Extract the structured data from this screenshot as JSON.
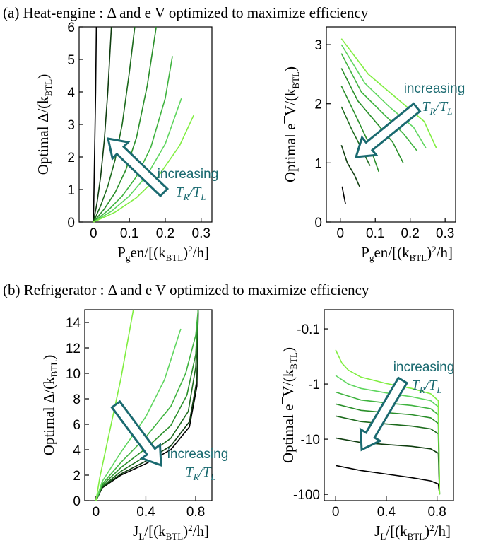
{
  "titles": {
    "a": "(a) Heat-engine : Δ and e V optimized to maximize efficiency",
    "b": "(b) Refrigerator : Δ and e V optimized to maximize efficiency"
  },
  "series_colors": [
    "#000000",
    "#0f3d0f",
    "#1c6a1c",
    "#2a8f2a",
    "#3fb33f",
    "#5fd65f",
    "#80ee40"
  ],
  "annotation_color": "#1a6a70",
  "chart_data": [
    {
      "id": "a-left",
      "type": "line",
      "xlabel": "P_gen/[(k_BT_L)^2/h]",
      "ylabel": "Optimal Δ/(k_BT_L)",
      "xlim": [
        -0.04,
        0.33
      ],
      "ylim": [
        0,
        6
      ],
      "xticks": [
        "0",
        "0.1",
        "0.2",
        "0.3"
      ],
      "xtick_values": [
        0,
        0.1,
        0.2,
        0.3
      ],
      "yticks": [
        "0",
        "1",
        "2",
        "3",
        "4",
        "5",
        "6"
      ],
      "ytick_values": [
        0,
        1,
        2,
        3,
        4,
        5,
        6
      ],
      "annotation": {
        "word": "increasing",
        "ratio": "T_R/T_L"
      },
      "series": [
        {
          "x": [
            0,
            0.003,
            0.006,
            0.008
          ],
          "y": [
            0,
            2,
            4,
            6
          ]
        },
        {
          "x": [
            0,
            0.01,
            0.02,
            0.03,
            0.04,
            0.05
          ],
          "y": [
            0,
            0.6,
            1.4,
            2.5,
            4.0,
            6.0
          ]
        },
        {
          "x": [
            0,
            0.02,
            0.04,
            0.06,
            0.08,
            0.1,
            0.115
          ],
          "y": [
            0,
            0.5,
            1.1,
            1.9,
            3.0,
            4.6,
            6.0
          ]
        },
        {
          "x": [
            0,
            0.03,
            0.06,
            0.09,
            0.12,
            0.15,
            0.175
          ],
          "y": [
            0,
            0.4,
            0.9,
            1.6,
            2.6,
            4.2,
            6.0
          ]
        },
        {
          "x": [
            0,
            0.04,
            0.08,
            0.12,
            0.16,
            0.2,
            0.22
          ],
          "y": [
            0,
            0.35,
            0.8,
            1.4,
            2.3,
            3.8,
            5.1
          ]
        },
        {
          "x": [
            0,
            0.05,
            0.1,
            0.15,
            0.2,
            0.245
          ],
          "y": [
            0,
            0.33,
            0.8,
            1.45,
            2.4,
            3.8
          ]
        },
        {
          "x": [
            0,
            0.06,
            0.12,
            0.18,
            0.24,
            0.28
          ],
          "y": [
            0,
            0.3,
            0.75,
            1.4,
            2.35,
            3.3
          ]
        }
      ]
    },
    {
      "id": "a-right",
      "type": "line",
      "xlabel": "P_gen/[(k_BT_L)^2/h]",
      "ylabel": "Optimal e¯V/(k_BT_L)",
      "xlim": [
        -0.04,
        0.33
      ],
      "ylim": [
        0,
        3.3
      ],
      "xticks": [
        "0",
        "0.1",
        "0.2",
        "0.3"
      ],
      "xtick_values": [
        0,
        0.1,
        0.2,
        0.3
      ],
      "yticks": [
        "0",
        "1",
        "2",
        "3"
      ],
      "ytick_values": [
        0,
        1,
        2,
        3
      ],
      "annotation": {
        "word": "increasing",
        "ratio": "T_R/T_L"
      },
      "series": [
        {
          "x": [
            0.005,
            0.01,
            0.015
          ],
          "y": [
            0.6,
            0.45,
            0.3
          ]
        },
        {
          "x": [
            0.003,
            0.02,
            0.04,
            0.055
          ],
          "y": [
            1.3,
            1.0,
            0.8,
            0.6
          ]
        },
        {
          "x": [
            0.003,
            0.03,
            0.06,
            0.085
          ],
          "y": [
            1.95,
            1.6,
            1.25,
            0.95
          ]
        },
        {
          "x": [
            0.003,
            0.04,
            0.08,
            0.11
          ],
          "y": [
            2.3,
            1.85,
            1.35,
            0.85
          ]
        },
        {
          "x": [
            0.003,
            0.05,
            0.1,
            0.15,
            0.18
          ],
          "y": [
            2.6,
            2.05,
            1.7,
            1.35,
            1.0
          ]
        },
        {
          "x": [
            0.003,
            0.06,
            0.12,
            0.18,
            0.22
          ],
          "y": [
            2.85,
            2.2,
            1.85,
            1.5,
            1.2
          ]
        },
        {
          "x": [
            0.003,
            0.07,
            0.14,
            0.21,
            0.245
          ],
          "y": [
            3.0,
            2.35,
            1.95,
            1.6,
            1.25
          ]
        },
        {
          "x": [
            0.003,
            0.08,
            0.16,
            0.24,
            0.275
          ],
          "y": [
            3.1,
            2.5,
            2.1,
            1.7,
            1.25
          ]
        }
      ]
    },
    {
      "id": "b-left",
      "type": "line",
      "xlabel": "J_L/[(k_BT_L)^2/h]",
      "ylabel": "Optimal Δ/(k_BT_L)",
      "xlim": [
        -0.09,
        0.93
      ],
      "ylim": [
        0,
        15
      ],
      "xticks": [
        "0",
        "0.4",
        "0.8"
      ],
      "xtick_values": [
        0,
        0.4,
        0.8
      ],
      "yticks": [
        "0",
        "2",
        "4",
        "6",
        "8",
        "10",
        "12",
        "14"
      ],
      "ytick_values": [
        0,
        2,
        4,
        6,
        8,
        10,
        12,
        14
      ],
      "annotation": {
        "word": "increasing",
        "ratio": "T_R/T_L"
      },
      "series": [
        {
          "x": [
            0,
            0.05,
            0.2,
            0.4,
            0.6,
            0.75,
            0.81,
            0.82
          ],
          "y": [
            0,
            1.0,
            2.0,
            2.9,
            4.0,
            5.8,
            9.0,
            15
          ]
        },
        {
          "x": [
            0,
            0.05,
            0.2,
            0.4,
            0.6,
            0.75,
            0.81,
            0.82
          ],
          "y": [
            0,
            1.05,
            2.1,
            3.1,
            4.3,
            6.2,
            9.5,
            15
          ]
        },
        {
          "x": [
            0,
            0.05,
            0.2,
            0.4,
            0.6,
            0.74,
            0.8,
            0.82
          ],
          "y": [
            0,
            1.1,
            2.3,
            3.5,
            4.9,
            7.0,
            10.5,
            15
          ]
        },
        {
          "x": [
            0,
            0.05,
            0.2,
            0.4,
            0.6,
            0.73,
            0.8,
            0.82
          ],
          "y": [
            0,
            1.2,
            2.6,
            4.1,
            5.9,
            8.3,
            11.5,
            15
          ]
        },
        {
          "x": [
            0,
            0.05,
            0.2,
            0.4,
            0.6,
            0.72,
            0.8,
            0.82
          ],
          "y": [
            0,
            1.3,
            3.0,
            5.0,
            7.4,
            10.0,
            13.0,
            15
          ]
        },
        {
          "x": [
            0,
            0.05,
            0.2,
            0.4,
            0.55,
            0.68
          ],
          "y": [
            0,
            1.5,
            3.8,
            6.6,
            9.5,
            13.5
          ]
        },
        {
          "x": [
            0,
            0.03,
            0.1,
            0.2,
            0.3
          ],
          "y": [
            0,
            1.8,
            5.0,
            9.6,
            15
          ]
        }
      ]
    },
    {
      "id": "b-right",
      "type": "line",
      "xlabel": "J_L/[(k_BT_L)^2/h]",
      "ylabel": "Optimal e¯V/(k_BT_L)",
      "xlim": [
        -0.09,
        0.93
      ],
      "ylim": [
        -130,
        -0.045
      ],
      "yscale": "log-negative",
      "xticks": [
        "0",
        "0.4",
        "0.8"
      ],
      "xtick_values": [
        0,
        0.4,
        0.8
      ],
      "yticks": [
        "-0.1",
        "-1",
        "-10",
        "-100"
      ],
      "ytick_values": [
        -0.1,
        -1,
        -10,
        -100
      ],
      "annotation": {
        "word": "increasing",
        "ratio": "T_R/T_L"
      },
      "series": [
        {
          "x": [
            0,
            0.2,
            0.4,
            0.6,
            0.75,
            0.81,
            0.82
          ],
          "y": [
            -30,
            -37,
            -43,
            -50,
            -57,
            -65,
            -100
          ]
        },
        {
          "x": [
            0,
            0.2,
            0.4,
            0.6,
            0.75,
            0.81,
            0.82
          ],
          "y": [
            -9.5,
            -11.5,
            -12.5,
            -13.5,
            -15,
            -18,
            -100
          ]
        },
        {
          "x": [
            0,
            0.2,
            0.4,
            0.6,
            0.75,
            0.81,
            0.82
          ],
          "y": [
            -3.8,
            -4.8,
            -5.3,
            -5.8,
            -6.5,
            -8,
            -100
          ]
        },
        {
          "x": [
            0,
            0.2,
            0.4,
            0.6,
            0.75,
            0.81,
            0.82
          ],
          "y": [
            -2.3,
            -3.0,
            -3.3,
            -3.6,
            -4.1,
            -5.2,
            -100
          ]
        },
        {
          "x": [
            0,
            0.2,
            0.4,
            0.6,
            0.75,
            0.81,
            0.82
          ],
          "y": [
            -1.4,
            -1.95,
            -2.2,
            -2.45,
            -2.8,
            -3.6,
            -100
          ]
        },
        {
          "x": [
            0,
            0.1,
            0.2,
            0.4,
            0.6,
            0.75,
            0.81,
            0.82
          ],
          "y": [
            -0.7,
            -1.0,
            -1.2,
            -1.45,
            -1.7,
            -2.0,
            -2.6,
            -100
          ]
        },
        {
          "x": [
            0,
            0.05,
            0.1,
            0.2,
            0.4,
            0.6,
            0.75,
            0.81,
            0.82
          ],
          "y": [
            -0.24,
            -0.42,
            -0.56,
            -0.75,
            -0.98,
            -1.2,
            -1.5,
            -2.0,
            -100
          ]
        }
      ]
    }
  ]
}
